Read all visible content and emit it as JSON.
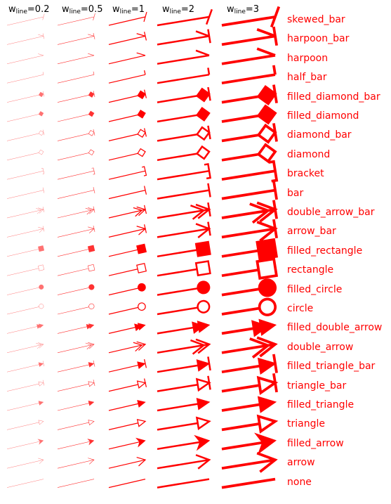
{
  "color": "#ff0000",
  "header": {
    "var": "w",
    "sub": "line",
    "columns": [
      {
        "value": "0.2"
      },
      {
        "value": "0.5"
      },
      {
        "value": "1"
      },
      {
        "value": "2"
      },
      {
        "value": "3"
      }
    ]
  },
  "styles": [
    "skewed_bar",
    "harpoon_bar",
    "harpoon",
    "half_bar",
    "filled_diamond_bar",
    "filled_diamond",
    "diamond_bar",
    "diamond",
    "bracket",
    "bar",
    "double_arrow_bar",
    "arrow_bar",
    "filled_rectangle",
    "rectangle",
    "filled_circle",
    "circle",
    "filled_double_arrow",
    "double_arrow",
    "filled_triangle_bar",
    "triangle_bar",
    "filled_triangle",
    "triangle",
    "filled_arrow",
    "arrow",
    "none"
  ]
}
